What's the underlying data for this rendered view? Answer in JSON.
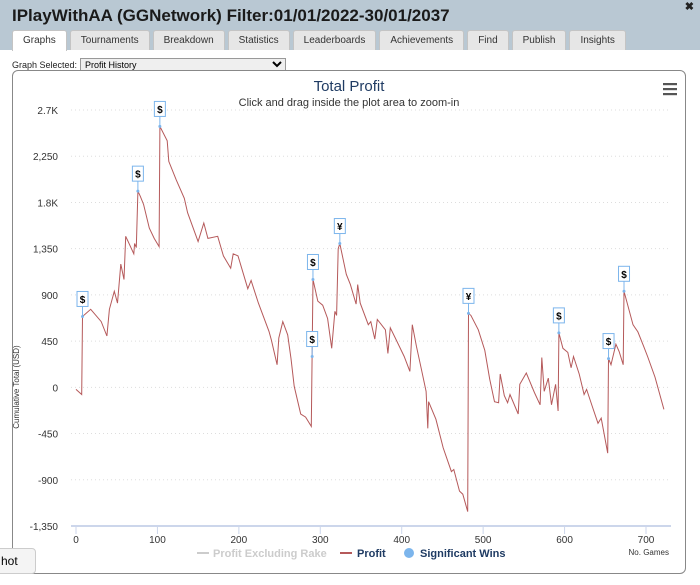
{
  "window": {
    "title": "IPlayWithAA (GGNetwork) Filter:01/01/2022-30/01/2037",
    "close_icon": "close-icon"
  },
  "tabs": [
    {
      "label": "Graphs",
      "active": true
    },
    {
      "label": "Tournaments"
    },
    {
      "label": "Breakdown"
    },
    {
      "label": "Statistics"
    },
    {
      "label": "Leaderboards"
    },
    {
      "label": "Achievements"
    },
    {
      "label": "Find"
    },
    {
      "label": "Publish"
    },
    {
      "label": "Insights"
    }
  ],
  "graph_select": {
    "label": "Graph Selected:",
    "value": "Profit History"
  },
  "snapshot_button": "hot",
  "colors": {
    "profit": "#b5595a",
    "flag": "#7cb5ec",
    "title": "#1f3b63",
    "header": "#b9c8d3"
  },
  "chart_data": {
    "type": "line",
    "title": "Total Profit",
    "subtitle": "Click and drag inside the plot area to zoom-in",
    "xlabel": "No. Games",
    "ylabel": "Cumulative Total (USD)",
    "xlim": [
      0,
      720
    ],
    "ylim": [
      -1350,
      2700
    ],
    "x_ticks": [
      "0",
      "100",
      "200",
      "300",
      "400",
      "500",
      "600",
      "700"
    ],
    "y_ticks": [
      "2.7K",
      "2,250",
      "1.8K",
      "1,350",
      "900",
      "450",
      "0",
      "-450",
      "-900",
      "-1,350"
    ],
    "grid": "horizontal dotted",
    "legend": {
      "position": "bottom",
      "items": [
        {
          "name": "Profit Excluding Rake",
          "hidden": true
        },
        {
          "name": "Profit"
        },
        {
          "name": "Significant Wins"
        }
      ]
    },
    "series": [
      {
        "name": "Profit",
        "points": [
          [
            0,
            -20
          ],
          [
            7,
            -70
          ],
          [
            8,
            690
          ],
          [
            18,
            760
          ],
          [
            31,
            640
          ],
          [
            38,
            500
          ],
          [
            41,
            760
          ],
          [
            47,
            935
          ],
          [
            51,
            820
          ],
          [
            55,
            1200
          ],
          [
            59,
            1050
          ],
          [
            61,
            1470
          ],
          [
            71,
            1300
          ],
          [
            72,
            1400
          ],
          [
            74,
            1360
          ],
          [
            76,
            1910
          ],
          [
            79,
            1860
          ],
          [
            83,
            1780
          ],
          [
            90,
            1550
          ],
          [
            96,
            1450
          ],
          [
            102,
            1370
          ],
          [
            103,
            2540
          ],
          [
            112,
            2400
          ],
          [
            114,
            2200
          ],
          [
            123,
            2020
          ],
          [
            133,
            1840
          ],
          [
            137,
            1700
          ],
          [
            150,
            1420
          ],
          [
            157,
            1600
          ],
          [
            162,
            1450
          ],
          [
            174,
            1470
          ],
          [
            181,
            1280
          ],
          [
            190,
            1160
          ],
          [
            193,
            1300
          ],
          [
            199,
            1280
          ],
          [
            211,
            960
          ],
          [
            215,
            1040
          ],
          [
            224,
            820
          ],
          [
            237,
            545
          ],
          [
            240,
            460
          ],
          [
            247,
            220
          ],
          [
            249,
            480
          ],
          [
            254,
            640
          ],
          [
            260,
            510
          ],
          [
            264,
            280
          ],
          [
            268,
            10
          ],
          [
            276,
            -260
          ],
          [
            282,
            -290
          ],
          [
            289,
            -380
          ],
          [
            290,
            300
          ],
          [
            291,
            1050
          ],
          [
            297,
            840
          ],
          [
            303,
            800
          ],
          [
            309,
            670
          ],
          [
            314,
            380
          ],
          [
            318,
            740
          ],
          [
            320,
            700
          ],
          [
            322,
            1350
          ],
          [
            324,
            1400
          ],
          [
            332,
            1100
          ],
          [
            337,
            1000
          ],
          [
            344,
            810
          ],
          [
            346,
            1000
          ],
          [
            349,
            820
          ],
          [
            359,
            610
          ],
          [
            362,
            640
          ],
          [
            367,
            470
          ],
          [
            370,
            660
          ],
          [
            380,
            560
          ],
          [
            383,
            330
          ],
          [
            386,
            580
          ],
          [
            394,
            450
          ],
          [
            403,
            300
          ],
          [
            410,
            155
          ],
          [
            413,
            610
          ],
          [
            418,
            400
          ],
          [
            424,
            180
          ],
          [
            430,
            -40
          ],
          [
            432,
            -400
          ],
          [
            433,
            -140
          ],
          [
            442,
            -310
          ],
          [
            451,
            -590
          ],
          [
            461,
            -820
          ],
          [
            464,
            -800
          ],
          [
            471,
            -1010
          ],
          [
            475,
            -1040
          ],
          [
            481,
            -1210
          ],
          [
            482,
            720
          ],
          [
            485,
            700
          ],
          [
            494,
            560
          ],
          [
            502,
            360
          ],
          [
            508,
            80
          ],
          [
            514,
            -140
          ],
          [
            519,
            -150
          ],
          [
            521,
            130
          ],
          [
            526,
            -80
          ],
          [
            530,
            -150
          ],
          [
            533,
            -70
          ],
          [
            543,
            -260
          ],
          [
            545,
            30
          ],
          [
            553,
            140
          ],
          [
            563,
            -50
          ],
          [
            570,
            -170
          ],
          [
            572,
            290
          ],
          [
            575,
            -40
          ],
          [
            580,
            90
          ],
          [
            584,
            -170
          ],
          [
            589,
            30
          ],
          [
            592,
            -230
          ],
          [
            593,
            530
          ],
          [
            598,
            380
          ],
          [
            604,
            340
          ],
          [
            608,
            190
          ],
          [
            611,
            300
          ],
          [
            618,
            130
          ],
          [
            624,
            -70
          ],
          [
            627,
            -20
          ],
          [
            635,
            -210
          ],
          [
            641,
            -350
          ],
          [
            645,
            -300
          ],
          [
            653,
            -640
          ],
          [
            654,
            280
          ],
          [
            657,
            220
          ],
          [
            663,
            420
          ],
          [
            667,
            350
          ],
          [
            672,
            220
          ],
          [
            673,
            935
          ],
          [
            684,
            610
          ],
          [
            690,
            540
          ],
          [
            697,
            400
          ],
          [
            702,
            300
          ],
          [
            711,
            100
          ],
          [
            722,
            -215
          ]
        ]
      },
      {
        "name": "Significant Wins",
        "flags": [
          {
            "x": 8,
            "y": 690,
            "label": "$"
          },
          {
            "x": 76,
            "y": 1910,
            "label": "$"
          },
          {
            "x": 103,
            "y": 2540,
            "label": "$"
          },
          {
            "x": 290,
            "y": 300,
            "label": "$"
          },
          {
            "x": 291,
            "y": 1050,
            "label": "$"
          },
          {
            "x": 324,
            "y": 1400,
            "label": "¥"
          },
          {
            "x": 482,
            "y": 720,
            "label": "¥"
          },
          {
            "x": 593,
            "y": 530,
            "label": "$"
          },
          {
            "x": 654,
            "y": 280,
            "label": "$"
          },
          {
            "x": 673,
            "y": 935,
            "label": "$"
          }
        ]
      }
    ]
  }
}
